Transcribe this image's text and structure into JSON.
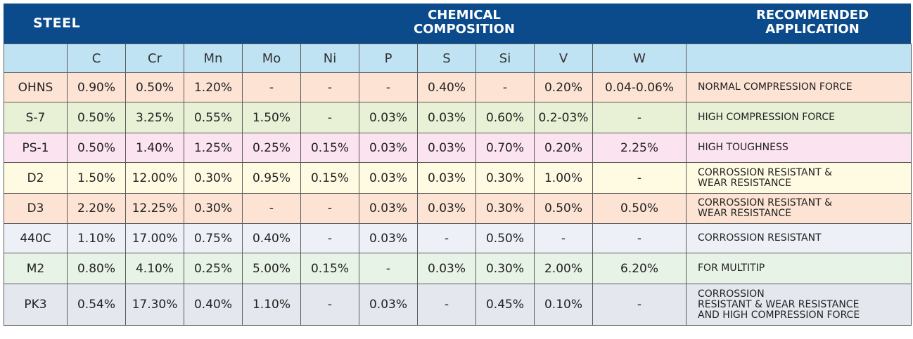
{
  "header": {
    "steel": "STEEL",
    "chemical_line1": "CHEMICAL",
    "chemical_line2": "COMPOSITION",
    "application_line1": "RECOMMENDED",
    "application_line2": "APPLICATION"
  },
  "columns": [
    "C",
    "Cr",
    "Mn",
    "Mo",
    "Ni",
    "P",
    "S",
    "Si",
    "V",
    "W"
  ],
  "rows": [
    {
      "steel": "OHNS",
      "values": [
        "0.90%",
        "0.50%",
        "1.20%",
        "-",
        "-",
        "-",
        "0.40%",
        "-",
        "0.20%",
        "0.04-0.06%"
      ],
      "application": [
        "NORMAL COMPRESSION FORCE"
      ],
      "bg": "#fde3d3"
    },
    {
      "steel": "S-7",
      "values": [
        "0.50%",
        "3.25%",
        "0.55%",
        "1.50%",
        "-",
        "0.03%",
        "0.03%",
        "0.60%",
        "0.2-03%",
        "-"
      ],
      "application": [
        "HIGH COMPRESSION FORCE"
      ],
      "bg": "#e8f0d6"
    },
    {
      "steel": "PS-1",
      "values": [
        "0.50%",
        "1.40%",
        "1.25%",
        "0.25%",
        "0.15%",
        "0.03%",
        "0.03%",
        "0.70%",
        "0.20%",
        "2.25%"
      ],
      "application": [
        "HIGH TOUGHNESS"
      ],
      "bg": "#fbe3ef"
    },
    {
      "steel": "D2",
      "values": [
        "1.50%",
        "12.00%",
        "0.30%",
        "0.95%",
        "0.15%",
        "0.03%",
        "0.03%",
        "0.30%",
        "1.00%",
        "-"
      ],
      "application": [
        "CORROSSION RESISTANT &",
        "WEAR RESISTANCE"
      ],
      "bg": "#fffbe3"
    },
    {
      "steel": "D3",
      "values": [
        "2.20%",
        "12.25%",
        "0.30%",
        "-",
        "-",
        "0.03%",
        "0.03%",
        "0.30%",
        "0.50%",
        "0.50%"
      ],
      "application": [
        "CORROSSION RESISTANT &",
        "WEAR RESISTANCE"
      ],
      "bg": "#fde3d3"
    },
    {
      "steel": "440C",
      "values": [
        "1.10%",
        "17.00%",
        "0.75%",
        "0.40%",
        "-",
        "0.03%",
        "-",
        "0.50%",
        "-",
        "-"
      ],
      "application": [
        "CORROSSION RESISTANT"
      ],
      "bg": "#eef0f8"
    },
    {
      "steel": "M2",
      "values": [
        "0.80%",
        "4.10%",
        "0.25%",
        "5.00%",
        "0.15%",
        "-",
        "0.03%",
        "0.30%",
        "2.00%",
        "6.20%"
      ],
      "application": [
        "FOR MULTITIP"
      ],
      "bg": "#e6f3e6"
    },
    {
      "steel": "PK3",
      "values": [
        "0.54%",
        "17.30%",
        "0.40%",
        "1.10%",
        "-",
        "0.03%",
        "-",
        "0.45%",
        "0.10%",
        "-"
      ],
      "application": [
        "CORROSSION",
        "RESISTANT & WEAR RESISTANCE",
        "AND HIGH COMPRESSION FORCE"
      ],
      "bg": "#e4e7ee"
    }
  ]
}
